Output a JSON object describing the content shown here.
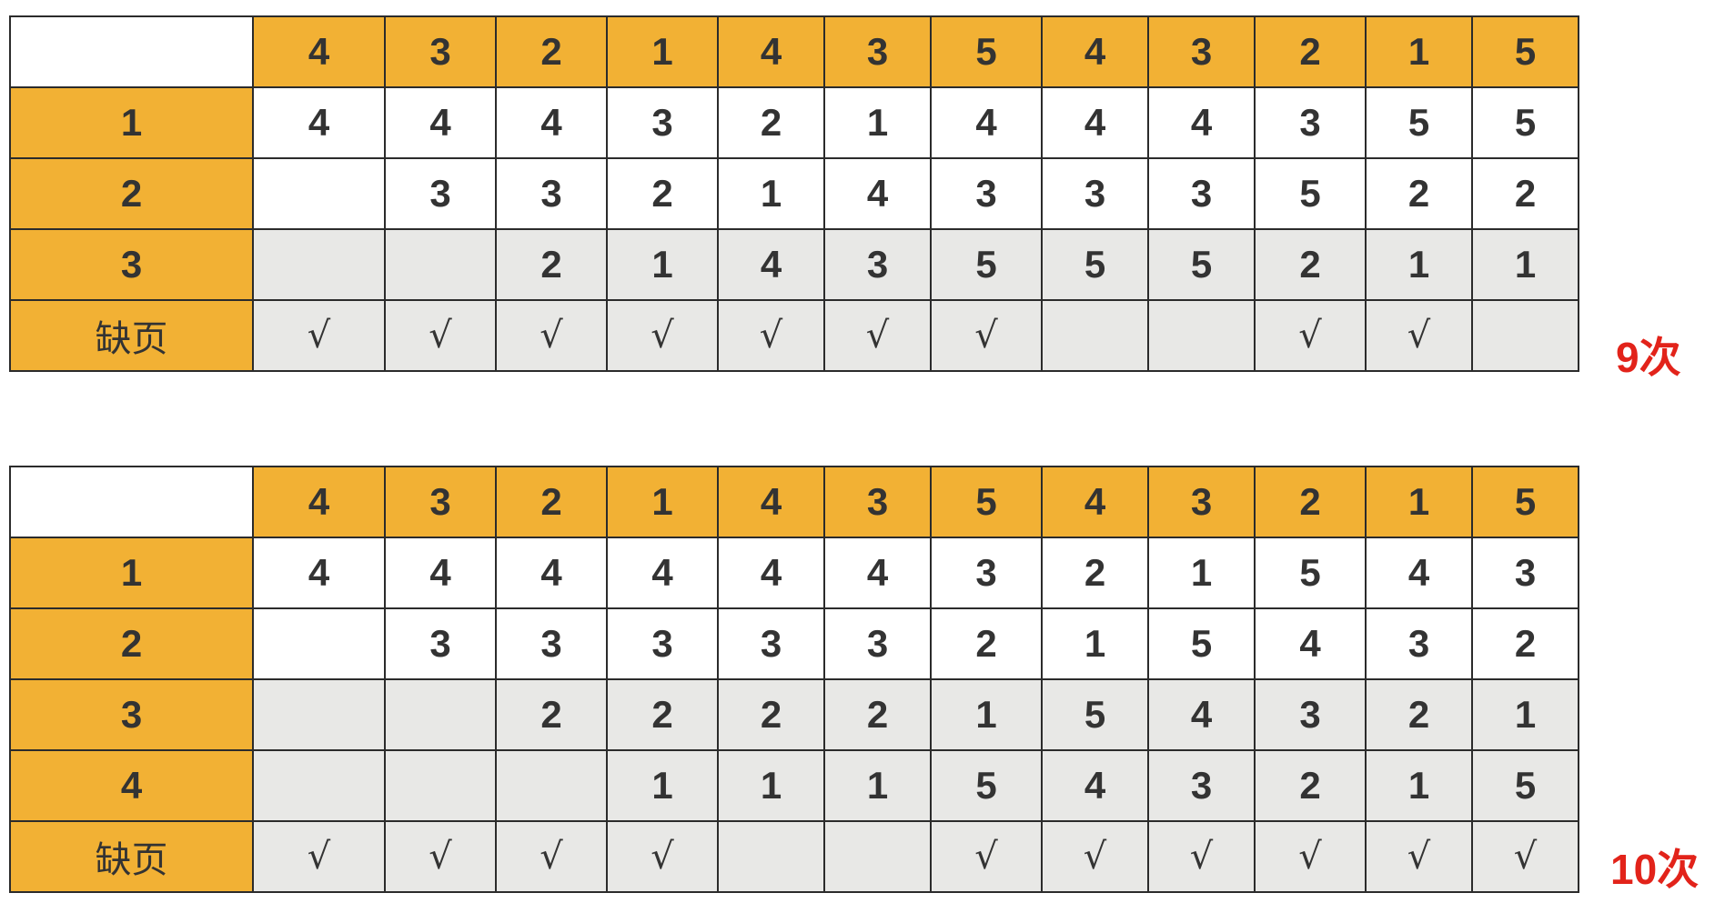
{
  "colors": {
    "header_fill": "#f2b134",
    "cell_white": "#ffffff",
    "cell_grey": "#e8e8e6",
    "grid_line": "#2b2b2b",
    "text": "#333333",
    "total_text": "#e2231a"
  },
  "tables": [
    {
      "reference_string": [
        "4",
        "3",
        "2",
        "1",
        "4",
        "3",
        "5",
        "4",
        "3",
        "2",
        "1",
        "5"
      ],
      "frame_labels": [
        "1",
        "2",
        "3"
      ],
      "frames": [
        [
          "4",
          "4",
          "4",
          "3",
          "2",
          "1",
          "4",
          "4",
          "4",
          "3",
          "5",
          "5"
        ],
        [
          "",
          "3",
          "3",
          "2",
          "1",
          "4",
          "3",
          "3",
          "3",
          "5",
          "2",
          "2"
        ],
        [
          "",
          "",
          "2",
          "1",
          "4",
          "3",
          "5",
          "5",
          "5",
          "2",
          "1",
          "1"
        ]
      ],
      "fault_label": "缺页",
      "faults": [
        "√",
        "√",
        "√",
        "√",
        "√",
        "√",
        "√",
        "",
        "",
        "√",
        "√",
        ""
      ],
      "total": "9次"
    },
    {
      "reference_string": [
        "4",
        "3",
        "2",
        "1",
        "4",
        "3",
        "5",
        "4",
        "3",
        "2",
        "1",
        "5"
      ],
      "frame_labels": [
        "1",
        "2",
        "3",
        "4"
      ],
      "frames": [
        [
          "4",
          "4",
          "4",
          "4",
          "4",
          "4",
          "3",
          "2",
          "1",
          "5",
          "4",
          "3"
        ],
        [
          "",
          "3",
          "3",
          "3",
          "3",
          "3",
          "2",
          "1",
          "5",
          "4",
          "3",
          "2"
        ],
        [
          "",
          "",
          "2",
          "2",
          "2",
          "2",
          "1",
          "5",
          "4",
          "3",
          "2",
          "1"
        ],
        [
          "",
          "",
          "",
          "1",
          "1",
          "1",
          "5",
          "4",
          "3",
          "2",
          "1",
          "5"
        ]
      ],
      "fault_label": "缺页",
      "faults": [
        "√",
        "√",
        "√",
        "√",
        "",
        "",
        "√",
        "√",
        "√",
        "√",
        "√",
        "√"
      ],
      "total": "10次"
    }
  ]
}
